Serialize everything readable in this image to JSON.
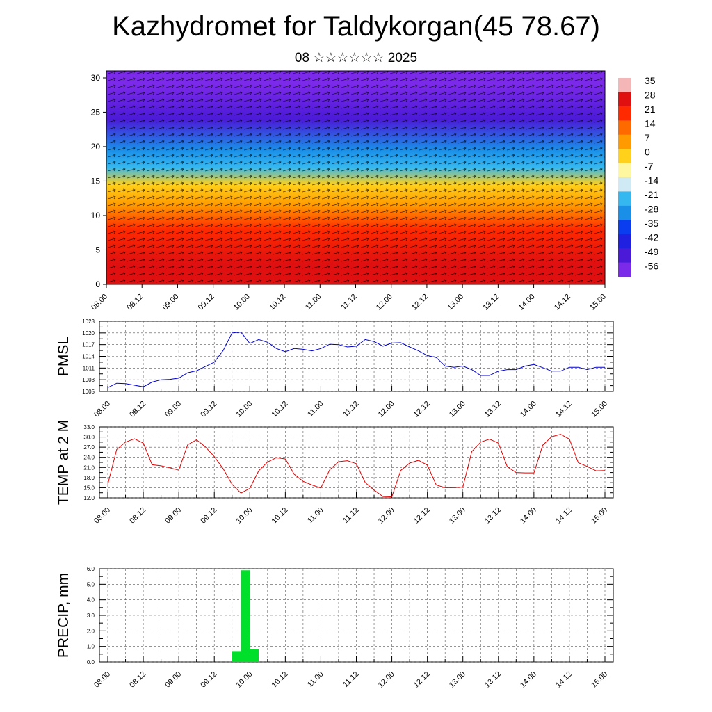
{
  "title": "Kazhydromet for Taldykorgan(45 78.67)",
  "subtitle": "08 ☆☆☆☆☆☆ 2025",
  "x_ticks": [
    "08.00",
    "08.12",
    "09.00",
    "09.12",
    "10.00",
    "10.12",
    "11.00",
    "11.12",
    "12.00",
    "12.12",
    "13.00",
    "13.12",
    "14.00",
    "14.12",
    "15.00"
  ],
  "chart_data": [
    {
      "type": "heatmap",
      "title": "",
      "xlabel": "",
      "ylabel": "",
      "ylim": [
        0,
        30
      ],
      "y_ticks": [
        0,
        5,
        10,
        15,
        20,
        25,
        30
      ],
      "y_tick_labels": [
        "0",
        "5",
        "10",
        "15",
        "20",
        "25",
        "30"
      ],
      "colorbar": {
        "labels": [
          "35",
          "28",
          "21",
          "14",
          "7",
          "0",
          "-7",
          "-14",
          "-21",
          "-28",
          "-35",
          "-42",
          "-49",
          "-56"
        ],
        "colors": [
          "#f4b6b6",
          "#e01010",
          "#ff2a00",
          "#ff6a00",
          "#ff9a00",
          "#ffd11a",
          "#fff7a0",
          "#cfe9f5",
          "#35b8f0",
          "#1a8fe8",
          "#0a3cf0",
          "#2020e0",
          "#4b1ad8",
          "#7a2ae8"
        ]
      },
      "bands": [
        {
          "from": 0,
          "to": 6,
          "value": 28
        },
        {
          "from": 6,
          "to": 10,
          "value": 18
        },
        {
          "from": 10,
          "to": 13,
          "value": 8
        },
        {
          "from": 13,
          "to": 16,
          "value": -3
        },
        {
          "from": 16,
          "to": 18,
          "value": -18
        },
        {
          "from": 18,
          "to": 21,
          "value": -30
        },
        {
          "from": 21,
          "to": 27,
          "value": -50
        },
        {
          "from": 27,
          "to": 31,
          "value": -57
        }
      ]
    },
    {
      "type": "line",
      "title": "",
      "ylabel": "PMSL",
      "ylim": [
        1005,
        1023
      ],
      "y_ticks": [
        1005,
        1008,
        1011,
        1014,
        1017,
        1020,
        1023
      ],
      "y_tick_labels": [
        "1005",
        "1008",
        "1011",
        "1014",
        "1017",
        "1020",
        "1023"
      ],
      "color": "#0000cc",
      "x": [
        0,
        3,
        6,
        9,
        12,
        15,
        18,
        21,
        24,
        27,
        30,
        33,
        36,
        39,
        42,
        45,
        48,
        51,
        54,
        57,
        60,
        63,
        66,
        69,
        72,
        75,
        78,
        81,
        84,
        87,
        90,
        93,
        96,
        99,
        102,
        105,
        108,
        111,
        114,
        117,
        120,
        123,
        126,
        129,
        132,
        135,
        138,
        141,
        144,
        147,
        150,
        153,
        156,
        159,
        162,
        165,
        168
      ],
      "values": [
        1006.0,
        1007.1,
        1007.0,
        1006.6,
        1006.2,
        1007.4,
        1008.0,
        1008.1,
        1008.4,
        1009.8,
        1010.3,
        1011.4,
        1012.5,
        1015.5,
        1020.0,
        1020.2,
        1017.3,
        1018.3,
        1017.6,
        1016.0,
        1015.2,
        1016.0,
        1015.8,
        1015.4,
        1016.0,
        1017.1,
        1017.0,
        1016.4,
        1016.6,
        1018.3,
        1017.8,
        1016.6,
        1017.4,
        1017.5,
        1016.4,
        1015.4,
        1014.2,
        1013.7,
        1011.5,
        1011.2,
        1011.5,
        1010.6,
        1009.1,
        1009.1,
        1010.2,
        1010.6,
        1010.6,
        1011.5,
        1011.9,
        1011.1,
        1010.2,
        1010.2,
        1011.2,
        1011.2,
        1010.6,
        1011.2,
        1011.2
      ]
    },
    {
      "type": "line",
      "title": "",
      "ylabel": "TEMP at 2 M",
      "ylim": [
        12,
        33
      ],
      "y_ticks": [
        12,
        15,
        18,
        21,
        24,
        27,
        30,
        33
      ],
      "y_tick_labels": [
        "12.0",
        "15.0",
        "18.0",
        "21.0",
        "24.0",
        "27.0",
        "30.0",
        "33.0"
      ],
      "color": "#e00000",
      "x": [
        0,
        3,
        6,
        9,
        12,
        15,
        18,
        21,
        24,
        27,
        30,
        33,
        36,
        39,
        42,
        45,
        48,
        51,
        54,
        57,
        60,
        63,
        66,
        69,
        72,
        75,
        78,
        81,
        84,
        87,
        90,
        93,
        96,
        99,
        102,
        105,
        108,
        111,
        114,
        117,
        120,
        123,
        126,
        129,
        132,
        135,
        138,
        141,
        144,
        147,
        150,
        153,
        156,
        159,
        162,
        165,
        168
      ],
      "values": [
        16.0,
        26.3,
        28.5,
        29.5,
        28.2,
        21.8,
        21.5,
        20.9,
        20.2,
        27.7,
        29.2,
        27.1,
        24.2,
        20.6,
        16.0,
        13.4,
        14.8,
        20.0,
        22.6,
        23.9,
        23.5,
        19.0,
        16.9,
        15.8,
        14.9,
        20.3,
        22.7,
        23.0,
        22.1,
        16.5,
        14.3,
        12.4,
        12.3,
        20.1,
        22.3,
        23.1,
        21.7,
        15.8,
        15.0,
        15.0,
        15.2,
        25.7,
        28.5,
        29.4,
        28.2,
        21.2,
        19.5,
        19.4,
        19.4,
        27.6,
        30.1,
        30.8,
        29.4,
        22.4,
        21.3,
        20.0,
        20.1
      ]
    },
    {
      "type": "bar",
      "title": "",
      "ylabel": "PRECIP, mm",
      "ylim": [
        0,
        6
      ],
      "y_ticks": [
        0,
        1,
        2,
        3,
        4,
        5,
        6
      ],
      "y_tick_labels": [
        "0.0",
        "1.0",
        "2.0",
        "3.0",
        "4.0",
        "5.0",
        "6.0"
      ],
      "color": "#00e02a",
      "bars": [
        {
          "start": 42,
          "end": 45,
          "value": 0.7
        },
        {
          "start": 45,
          "end": 48,
          "value": 5.9
        },
        {
          "start": 48,
          "end": 51,
          "value": 0.85
        }
      ]
    }
  ]
}
